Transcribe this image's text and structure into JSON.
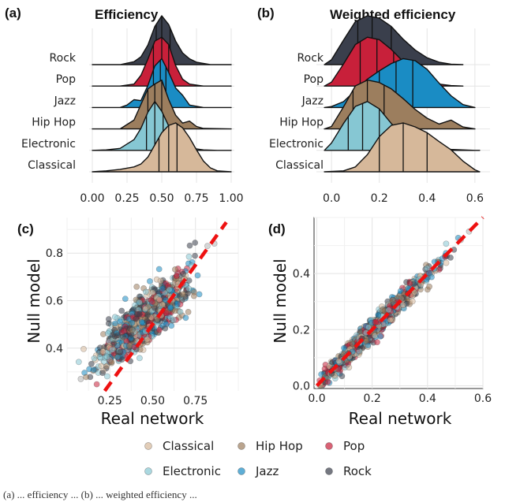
{
  "colors": {
    "Classical": "#d6b89a",
    "Hip Hop": "#9c7e5e",
    "Pop": "#c8203a",
    "Electronic": "#86c7d3",
    "Jazz": "#1a8cc4",
    "Rock": "#3a3f4c",
    "null_line": "#ee1111"
  },
  "legend": {
    "items": [
      "Classical",
      "Hip Hop",
      "Pop",
      "Electronic",
      "Jazz",
      "Rock"
    ]
  },
  "caption": "(a) ... efficiency ... (b) ... weighted efficiency ...",
  "chart_data": [
    {
      "id": "a",
      "type": "ridgeline",
      "panel_label": "(a)",
      "title": "Efficiency",
      "categories": [
        "Classical",
        "Electronic",
        "Hip Hop",
        "Jazz",
        "Pop",
        "Rock"
      ],
      "xlim": [
        0,
        1
      ],
      "xticks": [
        0.0,
        0.25,
        0.5,
        0.75,
        1.0
      ],
      "xtick_labels": [
        "0.00",
        "0.25",
        "0.50",
        "0.75",
        "1.00"
      ],
      "densities": {
        "Classical": {
          "x": [
            0.0,
            0.1,
            0.2,
            0.3,
            0.35,
            0.4,
            0.45,
            0.5,
            0.55,
            0.6,
            0.65,
            0.7,
            0.75,
            0.8,
            0.85,
            0.9,
            1.0
          ],
          "y": [
            0,
            0.02,
            0.05,
            0.1,
            0.16,
            0.3,
            0.55,
            0.8,
            0.95,
            1.0,
            0.9,
            0.7,
            0.45,
            0.22,
            0.08,
            0.02,
            0
          ],
          "quartiles": [
            0.48,
            0.55,
            0.61
          ]
        },
        "Electronic": {
          "x": [
            0.0,
            0.1,
            0.2,
            0.3,
            0.35,
            0.4,
            0.45,
            0.5,
            0.55,
            0.6,
            0.65,
            0.7,
            0.8,
            0.9,
            1.0
          ],
          "y": [
            0,
            0.01,
            0.04,
            0.22,
            0.45,
            0.78,
            1.0,
            0.8,
            0.5,
            0.3,
            0.15,
            0.05,
            0.01,
            0,
            0
          ],
          "quartiles": [
            0.39,
            0.45,
            0.51
          ]
        },
        "Hip Hop": {
          "x": [
            0.0,
            0.2,
            0.3,
            0.35,
            0.4,
            0.45,
            0.5,
            0.55,
            0.6,
            0.65,
            0.7,
            0.75,
            0.8,
            1.0
          ],
          "y": [
            0,
            0.0,
            0.18,
            0.5,
            0.82,
            0.92,
            1.0,
            0.6,
            0.28,
            0.12,
            0.16,
            0.05,
            0.01,
            0
          ],
          "quartiles": [
            0.4,
            0.45,
            0.5
          ]
        },
        "Jazz": {
          "x": [
            0.0,
            0.2,
            0.25,
            0.3,
            0.35,
            0.4,
            0.45,
            0.5,
            0.55,
            0.6,
            0.65,
            0.7,
            0.8,
            1.0
          ],
          "y": [
            0,
            0,
            0.05,
            0.16,
            0.14,
            0.45,
            0.85,
            1.0,
            0.72,
            0.4,
            0.25,
            0.05,
            0,
            0
          ],
          "quartiles": [
            0.44,
            0.49,
            0.53
          ]
        },
        "Pop": {
          "x": [
            0.0,
            0.2,
            0.3,
            0.35,
            0.4,
            0.45,
            0.5,
            0.55,
            0.6,
            0.65,
            0.7,
            0.8,
            1.0
          ],
          "y": [
            0,
            0.0,
            0.04,
            0.22,
            0.55,
            0.92,
            1.0,
            0.85,
            0.42,
            0.14,
            0.04,
            0,
            0
          ],
          "quartiles": [
            0.44,
            0.5,
            0.55
          ]
        },
        "Rock": {
          "x": [
            0.0,
            0.2,
            0.3,
            0.35,
            0.4,
            0.45,
            0.5,
            0.55,
            0.6,
            0.65,
            0.7,
            0.75,
            0.85,
            1.0
          ],
          "y": [
            0,
            0.0,
            0.06,
            0.16,
            0.4,
            0.78,
            1.0,
            0.82,
            0.48,
            0.24,
            0.12,
            0.05,
            0,
            0
          ],
          "quartiles": [
            0.46,
            0.5,
            0.56
          ]
        }
      }
    },
    {
      "id": "b",
      "type": "ridgeline",
      "panel_label": "(b)",
      "title": "Weighted efficiency",
      "categories": [
        "Classical",
        "Electronic",
        "Hip Hop",
        "Jazz",
        "Pop",
        "Rock"
      ],
      "xlim": [
        -0.05,
        0.65
      ],
      "xticks": [
        0.0,
        0.2,
        0.4,
        0.6
      ],
      "xtick_labels": [
        "0.0",
        "0.2",
        "0.4",
        "0.6"
      ],
      "densities": {
        "Classical": {
          "x": [
            -0.03,
            0.05,
            0.1,
            0.15,
            0.2,
            0.25,
            0.3,
            0.35,
            0.4,
            0.45,
            0.5,
            0.55,
            0.6,
            0.62
          ],
          "y": [
            0,
            0.02,
            0.1,
            0.35,
            0.72,
            0.95,
            1.0,
            0.92,
            0.8,
            0.62,
            0.45,
            0.22,
            0.04,
            0
          ],
          "quartiles": [
            0.2,
            0.3,
            0.4
          ]
        },
        "Electronic": {
          "x": [
            -0.03,
            0.0,
            0.05,
            0.1,
            0.15,
            0.2,
            0.25,
            0.3,
            0.35,
            0.4,
            0.45,
            0.5,
            0.6,
            0.62
          ],
          "y": [
            0,
            0.15,
            0.55,
            0.9,
            1.0,
            0.85,
            0.55,
            0.32,
            0.18,
            0.1,
            0.05,
            0.02,
            0,
            0
          ],
          "quartiles": [
            0.07,
            0.13,
            0.2
          ]
        },
        "Hip Hop": {
          "x": [
            -0.03,
            0.0,
            0.05,
            0.1,
            0.15,
            0.2,
            0.25,
            0.3,
            0.35,
            0.4,
            0.45,
            0.5,
            0.55,
            0.6
          ],
          "y": [
            0,
            0.05,
            0.45,
            0.88,
            1.0,
            0.95,
            0.82,
            0.62,
            0.4,
            0.22,
            0.1,
            0.18,
            0.04,
            0
          ],
          "quartiles": [
            0.09,
            0.15,
            0.22
          ]
        },
        "Jazz": {
          "x": [
            -0.03,
            0.0,
            0.05,
            0.1,
            0.15,
            0.2,
            0.25,
            0.3,
            0.35,
            0.4,
            0.45,
            0.5,
            0.55,
            0.6
          ],
          "y": [
            0,
            0.02,
            0.12,
            0.35,
            0.58,
            0.75,
            0.9,
            1.0,
            0.96,
            0.78,
            0.5,
            0.24,
            0.06,
            0
          ],
          "quartiles": [
            0.2,
            0.27,
            0.34
          ]
        },
        "Pop": {
          "x": [
            -0.03,
            0.0,
            0.05,
            0.1,
            0.15,
            0.2,
            0.25,
            0.3,
            0.35,
            0.4,
            0.45,
            0.5,
            0.55
          ],
          "y": [
            0,
            0.08,
            0.45,
            0.85,
            1.0,
            0.95,
            0.75,
            0.5,
            0.28,
            0.12,
            0.04,
            0.01,
            0
          ],
          "quartiles": [
            0.12,
            0.19,
            0.26
          ]
        },
        "Rock": {
          "x": [
            -0.03,
            0.0,
            0.05,
            0.1,
            0.15,
            0.2,
            0.25,
            0.3,
            0.35,
            0.4,
            0.45,
            0.5,
            0.55
          ],
          "y": [
            0,
            0.1,
            0.5,
            0.88,
            1.0,
            0.95,
            0.78,
            0.52,
            0.3,
            0.14,
            0.05,
            0.01,
            0
          ],
          "quartiles": [
            0.11,
            0.17,
            0.25
          ]
        }
      }
    },
    {
      "id": "c",
      "type": "scatter",
      "panel_label": "(c)",
      "xlabel": "Real network",
      "ylabel": "Null model",
      "xlim": [
        0.0,
        1.0
      ],
      "ylim": [
        0.22,
        0.95
      ],
      "xticks": [
        0.25,
        0.5,
        0.75
      ],
      "xtick_labels": [
        "0.25",
        "0.50",
        "0.75"
      ],
      "yticks": [
        0.4,
        0.6,
        0.8
      ],
      "ytick_labels": [
        "0.4",
        "0.6",
        "0.8"
      ],
      "reference_line": {
        "x": [
          0.22,
          0.93
        ],
        "y": [
          0.22,
          0.93
        ]
      },
      "cloud": {
        "center_x": 0.45,
        "center_y": 0.52,
        "spread_x": 0.12,
        "trend": 0.62,
        "noise": 0.05,
        "n": 1100,
        "extra_points": [
          [
            0.08,
            0.27
          ],
          [
            0.82,
            0.83
          ],
          [
            0.86,
            0.84
          ]
        ]
      }
    },
    {
      "id": "d",
      "type": "scatter",
      "panel_label": "(d)",
      "xlabel": "Real network",
      "ylabel": "Null model",
      "xlim": [
        -0.01,
        0.6
      ],
      "ylim": [
        -0.01,
        0.6
      ],
      "xticks": [
        0.0,
        0.2,
        0.4,
        0.6
      ],
      "xtick_labels": [
        "0.0",
        "0.2",
        "0.4",
        "0.6"
      ],
      "yticks": [
        0.0,
        0.2,
        0.4
      ],
      "ytick_labels": [
        "0.0",
        "0.2",
        "0.4"
      ],
      "reference_line": {
        "x": [
          0.0,
          0.6
        ],
        "y": [
          0.0,
          0.6
        ]
      },
      "cloud": {
        "center_x": 0.2,
        "center_y": 0.2,
        "spread_x": 0.1,
        "trend": 1.0,
        "noise": 0.018,
        "n": 1100,
        "extra_points": [
          [
            0.52,
            0.52
          ],
          [
            0.55,
            0.55
          ]
        ]
      }
    }
  ]
}
